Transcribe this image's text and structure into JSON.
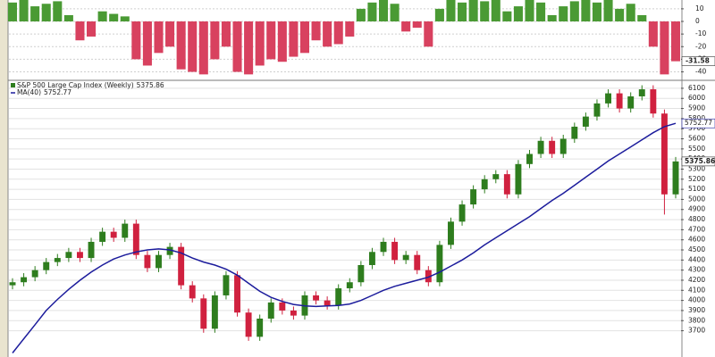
{
  "chart_data": [
    {
      "type": "bar",
      "values": [
        15,
        17,
        12,
        14,
        16,
        5,
        -15,
        -12,
        8,
        6,
        4,
        -30,
        -35,
        -25,
        -20,
        -38,
        -40,
        -42,
        -30,
        -20,
        -40,
        -42,
        -35,
        -30,
        -32,
        -28,
        -25,
        -15,
        -20,
        -18,
        -12,
        10,
        15,
        17,
        14,
        -8,
        -5,
        -20,
        10,
        17,
        15,
        17,
        16,
        17,
        8,
        12,
        17,
        15,
        5,
        12,
        16,
        17,
        15,
        17,
        10,
        14,
        5,
        -20,
        -42,
        -31.58
      ],
      "color_positive": "#4a9a34",
      "color_negative": "#d8415f",
      "ylim": [
        -46,
        17
      ],
      "yticks": [
        10,
        0,
        -10,
        -20,
        -30,
        -40
      ],
      "grid": true
    },
    {
      "type": "candlestick",
      "name": "S&P 500 Large Cap Index (Weekly)",
      "open": [
        4150,
        4180,
        4230,
        4300,
        4380,
        4420,
        4480,
        4420,
        4580,
        4680,
        4620,
        4760,
        4450,
        4320,
        4450,
        4530,
        4150,
        4020,
        3720,
        4050,
        4250,
        3880,
        3640,
        3820,
        3980,
        3900,
        3850,
        4050,
        4000,
        3950,
        4120,
        4180,
        4350,
        4480,
        4580,
        4400,
        4450,
        4300,
        4180,
        4550,
        4780,
        4950,
        5100,
        5200,
        5250,
        5050,
        5350,
        5450,
        5580,
        5450,
        5600,
        5720,
        5820,
        5950,
        6050,
        5900,
        6020,
        6090,
        5850,
        5050
      ],
      "high": [
        4220,
        4270,
        4340,
        4420,
        4460,
        4520,
        4520,
        4620,
        4720,
        4720,
        4800,
        4800,
        4490,
        4490,
        4570,
        4570,
        4190,
        4060,
        4090,
        4290,
        4290,
        3920,
        3860,
        4020,
        4020,
        3940,
        4090,
        4090,
        4040,
        4160,
        4220,
        4390,
        4520,
        4620,
        4620,
        4490,
        4490,
        4340,
        4590,
        4820,
        4990,
        5140,
        5240,
        5290,
        5290,
        5390,
        5490,
        5620,
        5620,
        5640,
        5760,
        5860,
        5990,
        6090,
        6090,
        6060,
        6130,
        6130,
        5890,
        5420
      ],
      "low": [
        4110,
        4140,
        4190,
        4260,
        4340,
        4380,
        4380,
        4380,
        4540,
        4580,
        4580,
        4410,
        4280,
        4280,
        4410,
        4110,
        3980,
        3680,
        3680,
        4010,
        3840,
        3600,
        3600,
        3780,
        3860,
        3810,
        3810,
        3960,
        3910,
        3910,
        4080,
        4140,
        4310,
        4440,
        4360,
        4360,
        4260,
        4140,
        4140,
        4510,
        4740,
        4910,
        5060,
        5160,
        5010,
        5010,
        5310,
        5410,
        5410,
        5410,
        5560,
        5680,
        5780,
        5910,
        5860,
        5860,
        5980,
        5810,
        4850,
        5010
      ],
      "close": [
        4180,
        4230,
        4300,
        4380,
        4420,
        4480,
        4420,
        4580,
        4680,
        4620,
        4760,
        4450,
        4320,
        4450,
        4530,
        4150,
        4020,
        3720,
        4050,
        4250,
        3880,
        3640,
        3820,
        3980,
        3900,
        3850,
        4050,
        4000,
        3950,
        4120,
        4180,
        4350,
        4480,
        4580,
        4400,
        4450,
        4300,
        4180,
        4550,
        4780,
        4950,
        5100,
        5200,
        5250,
        5050,
        5350,
        5450,
        5580,
        5450,
        5600,
        5720,
        5820,
        5950,
        6050,
        5900,
        6020,
        6090,
        5850,
        5050,
        5375.86
      ],
      "color_up": "#2e7d1e",
      "color_down": "#d0213f",
      "series": [
        {
          "name": "MA(40)",
          "color": "#1c1c9c",
          "values": [
            3480,
            3620,
            3760,
            3900,
            4010,
            4110,
            4200,
            4280,
            4350,
            4410,
            4450,
            4480,
            4500,
            4510,
            4500,
            4470,
            4420,
            4380,
            4350,
            4310,
            4250,
            4170,
            4090,
            4030,
            3990,
            3960,
            3945,
            3940,
            3945,
            3950,
            3965,
            4000,
            4050,
            4100,
            4140,
            4170,
            4200,
            4230,
            4280,
            4340,
            4400,
            4470,
            4550,
            4620,
            4690,
            4760,
            4830,
            4910,
            4990,
            5060,
            5140,
            5220,
            5300,
            5380,
            5450,
            5520,
            5590,
            5660,
            5720,
            5752.77
          ]
        }
      ],
      "ylim": [
        3440,
        6170
      ],
      "yticks": [
        3700,
        3800,
        3900,
        4000,
        4100,
        4200,
        4300,
        4400,
        4500,
        4600,
        4700,
        4800,
        4900,
        5000,
        5100,
        5200,
        5300,
        5400,
        5500,
        5600,
        5700,
        5800,
        5900,
        6000,
        6100
      ],
      "grid": true
    }
  ]
}
